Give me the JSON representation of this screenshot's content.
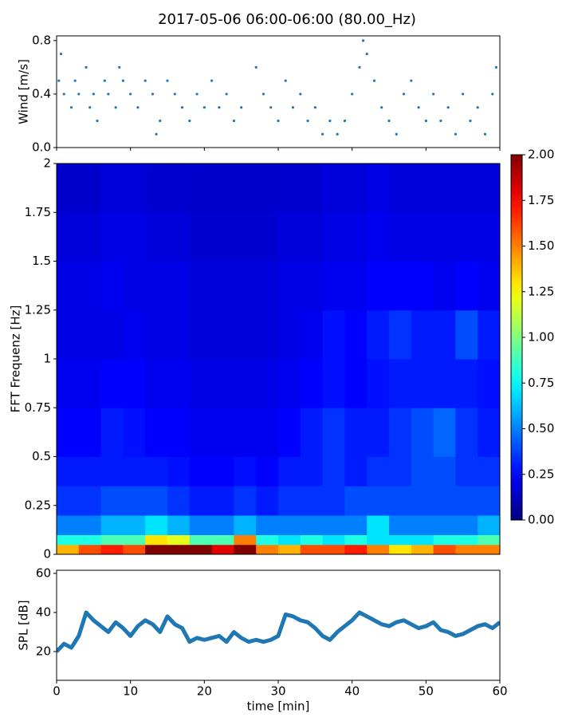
{
  "title": "2017-05-06 06:00-06:00 (80.00_Hz)",
  "chart_data": [
    {
      "type": "scatter",
      "ylabel": "Wind [m/s]",
      "color": "#1f77b4",
      "xlim": [
        0,
        60
      ],
      "ylim": [
        0,
        0.835
      ],
      "yticks": [
        {
          "value": 0,
          "label": "0.0"
        },
        0.4,
        0.8
      ],
      "x": [
        0.3,
        0.6,
        1,
        2,
        2.5,
        3,
        4,
        4.5,
        5,
        5.5,
        6.5,
        7,
        8,
        8.5,
        9,
        10,
        11,
        12,
        13,
        13.5,
        14,
        15,
        16,
        17,
        18,
        19,
        20,
        21,
        22,
        23,
        24,
        25,
        27,
        28,
        29,
        30,
        31,
        32,
        33,
        34,
        35,
        36,
        37,
        38,
        39,
        40,
        41,
        41.5,
        42,
        43,
        44,
        45,
        46,
        47,
        48,
        49,
        50,
        51,
        52,
        53,
        54,
        55,
        56,
        57,
        58,
        59,
        59.5
      ],
      "values": [
        0.5,
        0.7,
        0.4,
        0.3,
        0.5,
        0.4,
        0.6,
        0.3,
        0.4,
        0.2,
        0.5,
        0.4,
        0.3,
        0.6,
        0.5,
        0.4,
        0.3,
        0.5,
        0.4,
        0.1,
        0.2,
        0.5,
        0.4,
        0.3,
        0.2,
        0.4,
        0.3,
        0.5,
        0.3,
        0.4,
        0.2,
        0.3,
        0.6,
        0.4,
        0.3,
        0.2,
        0.5,
        0.3,
        0.4,
        0.2,
        0.3,
        0.1,
        0.2,
        0.1,
        0.2,
        0.4,
        0.6,
        0.8,
        0.7,
        0.5,
        0.3,
        0.2,
        0.1,
        0.4,
        0.5,
        0.3,
        0.2,
        0.4,
        0.2,
        0.3,
        0.1,
        0.4,
        0.2,
        0.3,
        0.1,
        0.4,
        0.6
      ]
    },
    {
      "type": "heatmap",
      "ylabel": "FFT Frequenz [Hz]",
      "xlim": [
        0,
        60
      ],
      "ylim": [
        0,
        2
      ],
      "yticks": [
        0,
        0.25,
        0.5,
        0.75,
        1,
        1.25,
        1.5,
        1.75,
        2
      ],
      "xbins": [
        0,
        3,
        6,
        9,
        12,
        15,
        18,
        21,
        24,
        27,
        30,
        33,
        36,
        39,
        42,
        45,
        48,
        51,
        54,
        57,
        60
      ],
      "ybins": [
        0,
        0.05,
        0.1,
        0.2,
        0.35,
        0.5,
        0.75,
        1,
        1.25,
        1.5,
        1.75,
        2
      ],
      "zlim": [
        0,
        2
      ],
      "colorbar_ticks": [
        {
          "value": 0,
          "label": "0.00"
        },
        {
          "value": 0.25,
          "label": "0.25"
        },
        {
          "value": 0.5,
          "label": "0.50"
        },
        {
          "value": 0.75,
          "label": "0.75"
        },
        {
          "value": 1,
          "label": "1.00"
        },
        {
          "value": 1.25,
          "label": "1.25"
        },
        {
          "value": 1.5,
          "label": "1.50"
        },
        {
          "value": 1.75,
          "label": "1.75"
        },
        {
          "value": 2,
          "label": "2.00"
        }
      ],
      "z": [
        [
          1.4,
          1.6,
          1.7,
          1.6,
          2,
          2,
          2,
          1.8,
          2,
          1.5,
          1.4,
          1.6,
          1.6,
          1.7,
          1.5,
          1.3,
          1.4,
          1.6,
          1.5,
          1.5
        ],
        [
          0.8,
          0.8,
          0.9,
          0.9,
          1.3,
          1.2,
          0.9,
          0.9,
          1.5,
          0.8,
          0.7,
          0.8,
          0.7,
          0.8,
          0.7,
          0.7,
          0.7,
          0.8,
          0.8,
          0.9
        ],
        [
          0.5,
          0.5,
          0.6,
          0.6,
          0.7,
          0.6,
          0.5,
          0.5,
          0.6,
          0.5,
          0.5,
          0.5,
          0.5,
          0.5,
          0.7,
          0.5,
          0.5,
          0.5,
          0.5,
          0.6
        ],
        [
          0.35,
          0.35,
          0.4,
          0.4,
          0.4,
          0.35,
          0.3,
          0.3,
          0.35,
          0.3,
          0.35,
          0.35,
          0.35,
          0.4,
          0.4,
          0.4,
          0.4,
          0.4,
          0.4,
          0.4
        ],
        [
          0.3,
          0.3,
          0.3,
          0.3,
          0.3,
          0.28,
          0.25,
          0.25,
          0.28,
          0.25,
          0.3,
          0.3,
          0.35,
          0.3,
          0.35,
          0.35,
          0.4,
          0.4,
          0.35,
          0.35
        ],
        [
          0.25,
          0.25,
          0.3,
          0.28,
          0.25,
          0.25,
          0.22,
          0.22,
          0.22,
          0.22,
          0.25,
          0.3,
          0.35,
          0.3,
          0.3,
          0.35,
          0.4,
          0.45,
          0.35,
          0.3
        ],
        [
          0.22,
          0.22,
          0.25,
          0.25,
          0.22,
          0.22,
          0.2,
          0.2,
          0.2,
          0.2,
          0.22,
          0.25,
          0.28,
          0.25,
          0.28,
          0.3,
          0.3,
          0.3,
          0.3,
          0.28
        ],
        [
          0.2,
          0.2,
          0.2,
          0.22,
          0.2,
          0.2,
          0.18,
          0.18,
          0.18,
          0.18,
          0.2,
          0.22,
          0.28,
          0.25,
          0.3,
          0.35,
          0.3,
          0.3,
          0.4,
          0.3
        ],
        [
          0.2,
          0.2,
          0.22,
          0.2,
          0.2,
          0.2,
          0.18,
          0.18,
          0.18,
          0.18,
          0.2,
          0.2,
          0.22,
          0.22,
          0.25,
          0.25,
          0.25,
          0.22,
          0.25,
          0.22
        ],
        [
          0.18,
          0.18,
          0.2,
          0.2,
          0.18,
          0.18,
          0.16,
          0.16,
          0.16,
          0.16,
          0.18,
          0.18,
          0.2,
          0.2,
          0.22,
          0.2,
          0.2,
          0.2,
          0.2,
          0.2
        ],
        [
          0.15,
          0.15,
          0.18,
          0.18,
          0.16,
          0.16,
          0.15,
          0.15,
          0.15,
          0.15,
          0.16,
          0.16,
          0.18,
          0.18,
          0.2,
          0.18,
          0.18,
          0.18,
          0.18,
          0.18
        ]
      ]
    },
    {
      "type": "line",
      "ylabel": "SPL [dB]",
      "xlabel": "time [min]",
      "color": "#1f77b4",
      "xlim": [
        0,
        60
      ],
      "ylim": [
        5.3,
        61.6
      ],
      "yticks": [
        20,
        40,
        60
      ],
      "xticks": [
        0,
        10,
        20,
        30,
        40,
        50,
        60
      ],
      "x": [
        0,
        1,
        2,
        3,
        4,
        5,
        6,
        7,
        8,
        9,
        10,
        11,
        12,
        13,
        14,
        15,
        16,
        17,
        18,
        19,
        20,
        21,
        22,
        23,
        24,
        25,
        26,
        27,
        28,
        29,
        30,
        31,
        32,
        33,
        34,
        35,
        36,
        37,
        38,
        39,
        40,
        41,
        42,
        43,
        44,
        45,
        46,
        47,
        48,
        49,
        50,
        51,
        52,
        53,
        54,
        55,
        56,
        57,
        58,
        59,
        60
      ],
      "values": [
        20,
        24,
        22,
        28,
        40,
        36,
        33,
        30,
        35,
        32,
        28,
        33,
        36,
        34,
        30,
        38,
        34,
        32,
        25,
        27,
        26,
        27,
        28,
        25,
        30,
        27,
        25,
        26,
        25,
        26,
        28,
        39,
        38,
        36,
        35,
        32,
        28,
        26,
        30,
        33,
        36,
        40,
        38,
        36,
        34,
        33,
        35,
        36,
        34,
        32,
        33,
        35,
        31,
        30,
        28,
        29,
        31,
        33,
        34,
        32,
        35
      ]
    }
  ]
}
